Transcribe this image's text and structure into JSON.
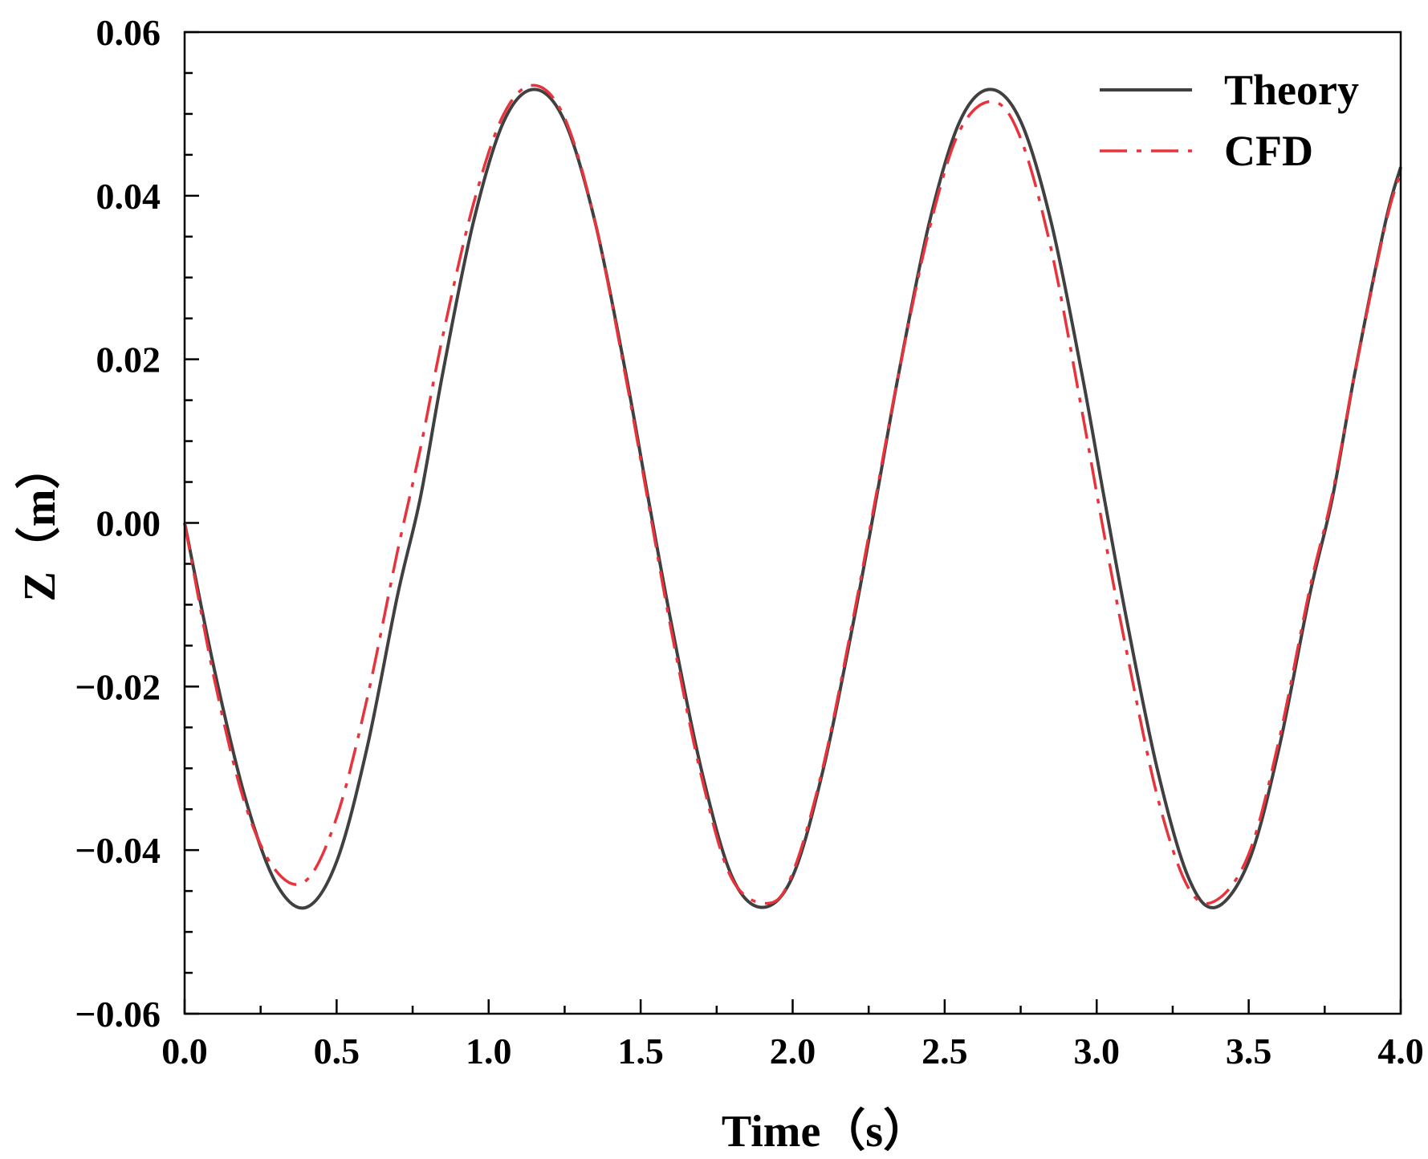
{
  "chart_data": {
    "type": "line",
    "title": "",
    "xlabel": "Time（s）",
    "ylabel": "Z（m）",
    "xlim": [
      0.0,
      4.0
    ],
    "ylim": [
      -0.06,
      0.06
    ],
    "x_ticks": [
      "0.0",
      "0.5",
      "1.0",
      "1.5",
      "2.0",
      "2.5",
      "3.0",
      "3.5",
      "4.0"
    ],
    "y_ticks": [
      "−0.06",
      "−0.04",
      "−0.02",
      "0.00",
      "0.02",
      "0.04",
      "0.06"
    ],
    "grid": false,
    "legend": "top-right",
    "legend_items": [
      "Theory",
      "CFD"
    ],
    "series": [
      {
        "name": "Theory",
        "color": "#404040",
        "style": "solid",
        "x": [
          0.0,
          0.1,
          0.2,
          0.3,
          0.4,
          0.5,
          0.6,
          0.7,
          0.775,
          0.85,
          0.95,
          1.05,
          1.15,
          1.25,
          1.35,
          1.45,
          1.525,
          1.6,
          1.7,
          1.8,
          1.9,
          2.0,
          2.1,
          2.2,
          2.275,
          2.35,
          2.45,
          2.55,
          2.65,
          2.75,
          2.85,
          2.95,
          3.025,
          3.1,
          3.2,
          3.3,
          3.39,
          3.5,
          3.6,
          3.7,
          3.775,
          3.85,
          3.95,
          4.0
        ],
        "y": [
          0.0,
          -0.0183,
          -0.0337,
          -0.044,
          -0.047,
          -0.0414,
          -0.0275,
          -0.0089,
          0.003,
          0.0185,
          0.0368,
          0.0491,
          0.053,
          0.0491,
          0.0368,
          0.0185,
          0.003,
          -0.0121,
          -0.0302,
          -0.0432,
          -0.047,
          -0.0432,
          -0.0302,
          -0.0121,
          0.003,
          0.0185,
          0.0368,
          0.0491,
          0.053,
          0.0491,
          0.0368,
          0.0185,
          0.003,
          -0.0121,
          -0.0302,
          -0.0432,
          -0.047,
          -0.0414,
          -0.0275,
          -0.0089,
          0.003,
          0.0185,
          0.0368,
          0.0435
        ]
      },
      {
        "name": "CFD",
        "color": "#e8333c",
        "style": "dashdot",
        "x": [
          0.0,
          0.1,
          0.2,
          0.3,
          0.4,
          0.5,
          0.6,
          0.7,
          0.775,
          0.85,
          0.95,
          1.05,
          1.15,
          1.25,
          1.35,
          1.45,
          1.525,
          1.6,
          1.7,
          1.8,
          1.92,
          2.0,
          2.1,
          2.2,
          2.275,
          2.35,
          2.45,
          2.55,
          2.66,
          2.75,
          2.85,
          2.95,
          3.025,
          3.1,
          3.2,
          3.3,
          3.39,
          3.5,
          3.6,
          3.7,
          3.775,
          3.85,
          3.95,
          4.0
        ],
        "y": [
          0.0,
          -0.0195,
          -0.0345,
          -0.0425,
          -0.0437,
          -0.036,
          -0.0215,
          -0.0035,
          0.009,
          0.023,
          0.039,
          0.05,
          0.0535,
          0.0495,
          0.0368,
          0.018,
          0.0025,
          -0.013,
          -0.031,
          -0.0435,
          -0.0465,
          -0.0428,
          -0.0298,
          -0.0115,
          0.0035,
          0.0185,
          0.036,
          0.048,
          0.0515,
          0.047,
          0.0335,
          0.014,
          -0.0015,
          -0.016,
          -0.0335,
          -0.0445,
          -0.0462,
          -0.0405,
          -0.0265,
          -0.0082,
          0.0035,
          0.0185,
          0.0365,
          0.0428
        ]
      }
    ]
  }
}
